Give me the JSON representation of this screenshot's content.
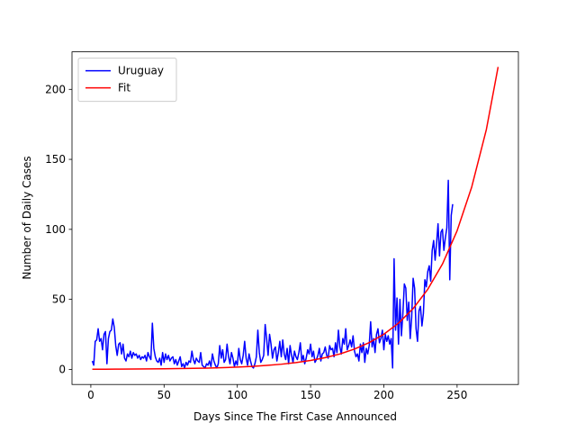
{
  "chart_data": {
    "type": "line",
    "x_label": "Days Since The First Case Announced",
    "y_label": "Number of Daily Cases",
    "xlim": [
      -12.85,
      291.85
    ],
    "ylim": [
      -10.8,
      226.8
    ],
    "xticks": [
      0,
      50,
      100,
      150,
      200,
      250
    ],
    "yticks": [
      0,
      50,
      100,
      150,
      200
    ],
    "legend": "upper left",
    "series": [
      {
        "name": "Uruguay",
        "color": "#0000ff",
        "x": [
          1,
          2,
          3,
          4,
          5,
          6,
          7,
          8,
          9,
          10,
          11,
          12,
          13,
          14,
          15,
          16,
          17,
          18,
          19,
          20,
          21,
          22,
          23,
          24,
          25,
          26,
          27,
          28,
          29,
          30,
          31,
          32,
          33,
          34,
          35,
          36,
          37,
          38,
          39,
          40,
          41,
          42,
          43,
          44,
          45,
          46,
          47,
          48,
          49,
          50,
          51,
          52,
          53,
          54,
          55,
          56,
          57,
          58,
          59,
          60,
          61,
          62,
          63,
          64,
          65,
          66,
          67,
          68,
          69,
          70,
          71,
          72,
          73,
          74,
          75,
          76,
          77,
          78,
          79,
          80,
          81,
          82,
          83,
          84,
          85,
          86,
          87,
          88,
          89,
          90,
          91,
          92,
          93,
          94,
          95,
          96,
          97,
          98,
          99,
          100,
          101,
          102,
          103,
          104,
          105,
          106,
          107,
          108,
          109,
          110,
          111,
          112,
          113,
          114,
          115,
          116,
          117,
          118,
          119,
          120,
          121,
          122,
          123,
          124,
          125,
          126,
          127,
          128,
          129,
          130,
          131,
          132,
          133,
          134,
          135,
          136,
          137,
          138,
          139,
          140,
          141,
          142,
          143,
          144,
          145,
          146,
          147,
          148,
          149,
          150,
          151,
          152,
          153,
          154,
          155,
          156,
          157,
          158,
          159,
          160,
          161,
          162,
          163,
          164,
          165,
          166,
          167,
          168,
          169,
          170,
          171,
          172,
          173,
          174,
          175,
          176,
          177,
          178,
          179,
          180,
          181,
          182,
          183,
          184,
          185,
          186,
          187,
          188,
          189,
          190,
          191,
          192,
          193,
          194,
          195,
          196,
          197,
          198,
          199,
          200,
          201,
          202,
          203,
          204,
          205,
          206,
          207,
          208,
          209,
          210,
          211,
          212,
          213,
          214,
          215,
          216,
          217,
          218,
          219,
          220,
          221,
          222,
          223,
          224,
          225,
          226,
          227,
          228,
          229,
          230,
          231,
          232,
          233,
          234,
          235,
          236,
          237,
          238,
          239,
          240,
          241,
          242,
          243,
          244,
          245,
          246,
          247
        ],
        "values": [
          6,
          3,
          20,
          21,
          29,
          20,
          22,
          14,
          25,
          27,
          4,
          22,
          27,
          28,
          36,
          30,
          17,
          10,
          18,
          19,
          11,
          18,
          8,
          6,
          11,
          9,
          13,
          8,
          12,
          10,
          11,
          8,
          10,
          7,
          9,
          8,
          10,
          6,
          12,
          9,
          7,
          33,
          15,
          9,
          6,
          5,
          8,
          3,
          12,
          5,
          11,
          7,
          10,
          6,
          8,
          9,
          4,
          7,
          3,
          6,
          9,
          2,
          4,
          1,
          5,
          3,
          6,
          5,
          13,
          7,
          4,
          8,
          6,
          5,
          12,
          3,
          2,
          1,
          4,
          3,
          6,
          2,
          11,
          6,
          3,
          1,
          4,
          17,
          8,
          14,
          5,
          7,
          18,
          9,
          4,
          12,
          8,
          2,
          6,
          3,
          15,
          7,
          4,
          10,
          20,
          8,
          3,
          11,
          6,
          2,
          1,
          4,
          9,
          28,
          12,
          5,
          7,
          10,
          32,
          22,
          10,
          25,
          18,
          8,
          14,
          16,
          6,
          12,
          20,
          9,
          21,
          11,
          7,
          15,
          4,
          17,
          10,
          5,
          13,
          9,
          7,
          12,
          19,
          6,
          10,
          4,
          8,
          14,
          11,
          18,
          9,
          13,
          5,
          7,
          10,
          15,
          6,
          11,
          12,
          16,
          10,
          8,
          17,
          14,
          15,
          9,
          19,
          12,
          28,
          16,
          11,
          22,
          18,
          29,
          14,
          17,
          21,
          16,
          24,
          13,
          9,
          11,
          6,
          18,
          12,
          19,
          5,
          15,
          11,
          17,
          34,
          16,
          22,
          12,
          25,
          29,
          19,
          22,
          28,
          14,
          25,
          20,
          24,
          18,
          22,
          1,
          79,
          28,
          51,
          18,
          50,
          24,
          40,
          61,
          58,
          35,
          48,
          22,
          37,
          65,
          58,
          29,
          20,
          42,
          45,
          31,
          40,
          64,
          59,
          70,
          74,
          63,
          85,
          92,
          78,
          90,
          104,
          81,
          98,
          100,
          85,
          94,
          101,
          135,
          64,
          110,
          118
        ]
      },
      {
        "name": "Fit",
        "color": "#ff0000",
        "x": [
          1,
          10,
          20,
          30,
          40,
          50,
          60,
          70,
          80,
          90,
          100,
          110,
          120,
          130,
          140,
          150,
          160,
          170,
          180,
          190,
          200,
          210,
          220,
          230,
          240,
          250,
          260,
          270,
          278
        ],
        "values": [
          0.106,
          0.136,
          0.179,
          0.236,
          0.31,
          0.408,
          0.537,
          0.707,
          0.93,
          1.22,
          1.61,
          2.12,
          2.79,
          3.67,
          4.83,
          6.35,
          8.36,
          11.0,
          14.5,
          19.1,
          25.1,
          33.0,
          43.4,
          57.2,
          75.2,
          99.0,
          130.3,
          171.4,
          216
        ]
      }
    ]
  }
}
